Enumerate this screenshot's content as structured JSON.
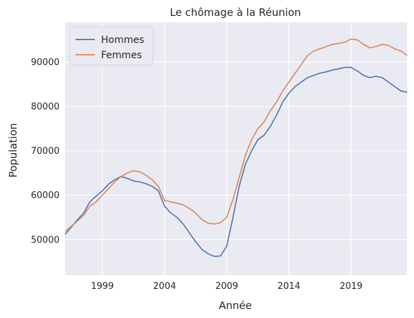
{
  "chart_data": {
    "type": "line",
    "title": "Le chômage à la Réunion",
    "xlabel": "Année",
    "ylabel": "Population",
    "xlim": [
      1996.0,
      2023.5
    ],
    "ylim": [
      42000,
      99000
    ],
    "x_ticks": [
      1999,
      2004,
      2009,
      2014,
      2019
    ],
    "x_tick_labels": [
      "1999",
      "2004",
      "2009",
      "2014",
      "2019"
    ],
    "y_ticks": [
      50000,
      60000,
      70000,
      80000,
      90000
    ],
    "y_tick_labels": [
      "50000",
      "60000",
      "70000",
      "80000",
      "90000"
    ],
    "grid": true,
    "legend_position": "upper-left",
    "background": "#eaeaf2",
    "series": [
      {
        "name": "Hommes",
        "color": "#4c72b0",
        "points": [
          [
            1996.0,
            51200
          ],
          [
            1996.5,
            52800
          ],
          [
            1997.0,
            54500
          ],
          [
            1997.5,
            56000
          ],
          [
            1998.0,
            58500
          ],
          [
            1998.5,
            59800
          ],
          [
            1999.0,
            61000
          ],
          [
            1999.5,
            62500
          ],
          [
            2000.0,
            63500
          ],
          [
            2000.5,
            64200
          ],
          [
            2001.0,
            63800
          ],
          [
            2001.5,
            63200
          ],
          [
            2002.0,
            63000
          ],
          [
            2002.5,
            62600
          ],
          [
            2003.0,
            62000
          ],
          [
            2003.5,
            61000
          ],
          [
            2004.0,
            57500
          ],
          [
            2004.5,
            56000
          ],
          [
            2005.0,
            55000
          ],
          [
            2005.5,
            53500
          ],
          [
            2006.0,
            51500
          ],
          [
            2006.5,
            49500
          ],
          [
            2007.0,
            47800
          ],
          [
            2007.5,
            46800
          ],
          [
            2008.0,
            46200
          ],
          [
            2008.5,
            46300
          ],
          [
            2009.0,
            48500
          ],
          [
            2009.5,
            55000
          ],
          [
            2010.0,
            62000
          ],
          [
            2010.5,
            67000
          ],
          [
            2011.0,
            70000
          ],
          [
            2011.5,
            72500
          ],
          [
            2012.0,
            73500
          ],
          [
            2012.5,
            75500
          ],
          [
            2013.0,
            78000
          ],
          [
            2013.5,
            81000
          ],
          [
            2014.0,
            83000
          ],
          [
            2014.5,
            84500
          ],
          [
            2015.0,
            85500
          ],
          [
            2015.5,
            86500
          ],
          [
            2016.0,
            87000
          ],
          [
            2016.5,
            87500
          ],
          [
            2017.0,
            87800
          ],
          [
            2017.5,
            88200
          ],
          [
            2018.0,
            88500
          ],
          [
            2018.5,
            88800
          ],
          [
            2019.0,
            88800
          ],
          [
            2019.5,
            88000
          ],
          [
            2020.0,
            87000
          ],
          [
            2020.5,
            86500
          ],
          [
            2021.0,
            86800
          ],
          [
            2021.5,
            86500
          ],
          [
            2022.0,
            85500
          ],
          [
            2022.5,
            84500
          ],
          [
            2023.0,
            83500
          ],
          [
            2023.5,
            83200
          ]
        ]
      },
      {
        "name": "Femmes",
        "color": "#dd8452",
        "points": [
          [
            1996.0,
            51800
          ],
          [
            1996.5,
            53000
          ],
          [
            1997.0,
            54200
          ],
          [
            1997.5,
            55500
          ],
          [
            1998.0,
            57500
          ],
          [
            1998.5,
            58500
          ],
          [
            1999.0,
            60000
          ],
          [
            1999.5,
            61500
          ],
          [
            2000.0,
            63000
          ],
          [
            2000.5,
            64200
          ],
          [
            2001.0,
            65000
          ],
          [
            2001.5,
            65500
          ],
          [
            2002.0,
            65300
          ],
          [
            2002.5,
            64500
          ],
          [
            2003.0,
            63500
          ],
          [
            2003.5,
            62000
          ],
          [
            2004.0,
            58800
          ],
          [
            2004.5,
            58500
          ],
          [
            2005.0,
            58200
          ],
          [
            2005.5,
            57800
          ],
          [
            2006.0,
            57000
          ],
          [
            2006.5,
            56000
          ],
          [
            2007.0,
            54500
          ],
          [
            2007.5,
            53700
          ],
          [
            2008.0,
            53500
          ],
          [
            2008.5,
            53800
          ],
          [
            2009.0,
            55000
          ],
          [
            2009.5,
            59000
          ],
          [
            2010.0,
            64000
          ],
          [
            2010.5,
            69000
          ],
          [
            2011.0,
            72500
          ],
          [
            2011.5,
            75000
          ],
          [
            2012.0,
            76500
          ],
          [
            2012.5,
            79000
          ],
          [
            2013.0,
            81000
          ],
          [
            2013.5,
            83500
          ],
          [
            2014.0,
            85500
          ],
          [
            2014.5,
            87500
          ],
          [
            2015.0,
            89500
          ],
          [
            2015.5,
            91500
          ],
          [
            2016.0,
            92500
          ],
          [
            2016.5,
            93000
          ],
          [
            2017.0,
            93500
          ],
          [
            2017.5,
            94000
          ],
          [
            2018.0,
            94200
          ],
          [
            2018.5,
            94500
          ],
          [
            2019.0,
            95200
          ],
          [
            2019.5,
            95000
          ],
          [
            2020.0,
            94000
          ],
          [
            2020.5,
            93200
          ],
          [
            2021.0,
            93500
          ],
          [
            2021.5,
            94000
          ],
          [
            2022.0,
            93800
          ],
          [
            2022.5,
            93000
          ],
          [
            2023.0,
            92500
          ],
          [
            2023.5,
            91500
          ]
        ]
      }
    ]
  }
}
